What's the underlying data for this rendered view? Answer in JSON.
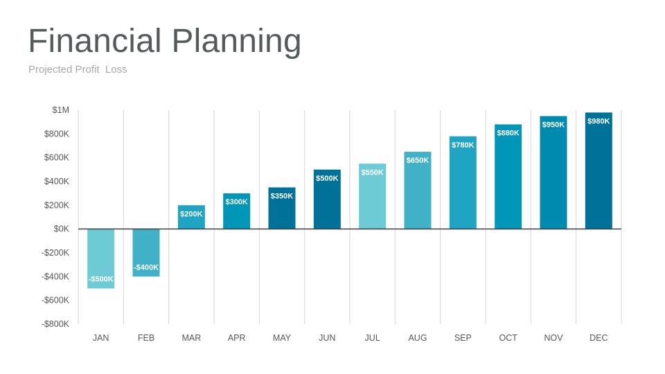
{
  "slide": {
    "title": "Financial Planning",
    "subtitle": "Projected Profit  Loss"
  },
  "colors": {
    "title": "#555a5c",
    "subtitle": "#a5a8aa",
    "axis_text": "#555555",
    "gridline": "#d6d6d6",
    "zero_line": "#3f3f3f",
    "bar_label": "#ffffff"
  },
  "chart_data": {
    "type": "bar",
    "title": "",
    "xlabel": "",
    "ylabel": "",
    "categories": [
      "JAN",
      "FEB",
      "MAR",
      "APR",
      "MAY",
      "JUN",
      "JUL",
      "AUG",
      "SEP",
      "OCT",
      "NOV",
      "DEC"
    ],
    "values": [
      -500,
      -400,
      200,
      300,
      350,
      500,
      550,
      650,
      780,
      880,
      950,
      980
    ],
    "value_unit": "thousands of dollars",
    "data_labels": [
      "-$500K",
      "-$400K",
      "$200K",
      "$300K",
      "$350K",
      "$500K",
      "$550K",
      "$650K",
      "$780K",
      "$880K",
      "$950K",
      "$980K"
    ],
    "bar_colors": [
      "#6ccbd4",
      "#40b1c7",
      "#1fa4c3",
      "#0096b8",
      "#00729a",
      "#00729a",
      "#6ccbd4",
      "#40b1c7",
      "#1fa4c3",
      "#0096b8",
      "#008ab0",
      "#00729a"
    ],
    "ylim": [
      -800,
      1000
    ],
    "yticks": [
      {
        "value": 1000,
        "label": "$1M"
      },
      {
        "value": 800,
        "label": "$800K"
      },
      {
        "value": 600,
        "label": "$600K"
      },
      {
        "value": 400,
        "label": "$400K"
      },
      {
        "value": 200,
        "label": "$200K"
      },
      {
        "value": 0,
        "label": "$0K"
      },
      {
        "value": -200,
        "label": "-$200K"
      },
      {
        "value": -400,
        "label": "-$400K"
      },
      {
        "value": -600,
        "label": "-$600K"
      },
      {
        "value": -800,
        "label": "-$800K"
      }
    ],
    "grid": "vertical",
    "legend": "none"
  }
}
